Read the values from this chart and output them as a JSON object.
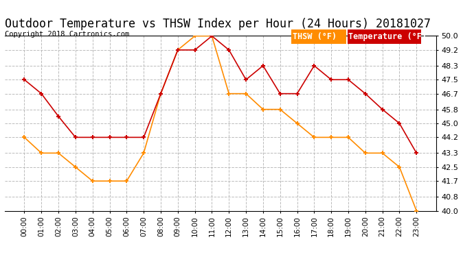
{
  "title": "Outdoor Temperature vs THSW Index per Hour (24 Hours) 20181027",
  "copyright": "Copyright 2018 Cartronics.com",
  "hours": [
    "00:00",
    "01:00",
    "02:00",
    "03:00",
    "04:00",
    "05:00",
    "06:00",
    "07:00",
    "08:00",
    "09:00",
    "10:00",
    "11:00",
    "12:00",
    "13:00",
    "14:00",
    "15:00",
    "16:00",
    "17:00",
    "18:00",
    "19:00",
    "20:00",
    "21:00",
    "22:00",
    "23:00"
  ],
  "temperature": [
    47.5,
    46.7,
    45.4,
    44.2,
    44.2,
    44.2,
    44.2,
    44.2,
    46.7,
    49.2,
    49.2,
    50.0,
    49.2,
    47.5,
    48.3,
    46.7,
    46.7,
    48.3,
    47.5,
    47.5,
    46.7,
    45.8,
    45.0,
    43.3
  ],
  "thsw": [
    44.2,
    43.3,
    43.3,
    42.5,
    41.7,
    41.7,
    41.7,
    43.3,
    46.7,
    49.2,
    50.0,
    50.0,
    46.7,
    46.7,
    45.8,
    45.8,
    45.0,
    44.2,
    44.2,
    44.2,
    43.3,
    43.3,
    42.5,
    40.0
  ],
  "temp_color": "#cc0000",
  "thsw_color": "#ff8c00",
  "ylim_min": 40.0,
  "ylim_max": 50.0,
  "yticks": [
    40.0,
    40.8,
    41.7,
    42.5,
    43.3,
    44.2,
    45.0,
    45.8,
    46.7,
    47.5,
    48.3,
    49.2,
    50.0
  ],
  "background_color": "#ffffff",
  "grid_color": "#bbbbbb",
  "title_fontsize": 12,
  "copyright_fontsize": 7.5,
  "legend_thsw_label": "THSW (°F)",
  "legend_temp_label": "Temperature (°F)",
  "thsw_legend_bg": "#ff8c00",
  "temp_legend_bg": "#cc0000"
}
